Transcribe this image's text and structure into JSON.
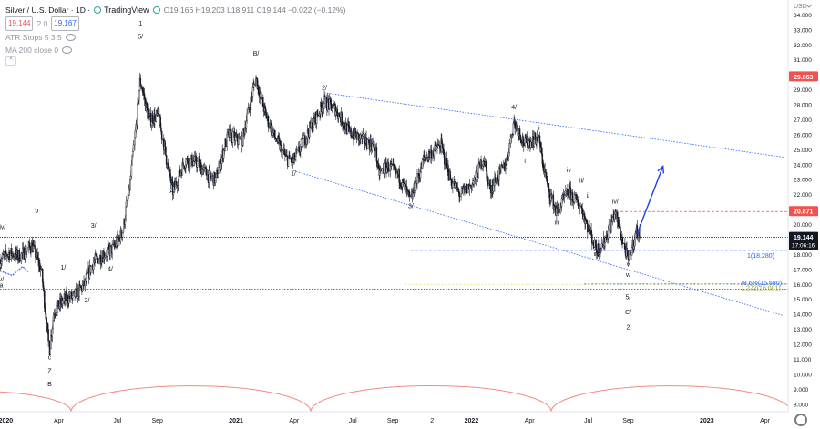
{
  "legend": {
    "symbol": "Silver / U.S. Dollar · 1D ·",
    "source": "TradingView",
    "o_label": "O",
    "o": "19.166",
    "h_label": "H",
    "h": "19.203",
    "l_label": "L",
    "l": "18.911",
    "c_label": "C",
    "c": "19.144",
    "change": "−0.022 (−0.12%)",
    "bid": "19.144",
    "spread": "2.0",
    "ask": "19.167",
    "indicator1": "ATR Stops 5 3.5",
    "indicator2": "MA 200 close 0",
    "collapse": "^"
  },
  "currency": "USD",
  "chart_data": {
    "type": "candlestick",
    "instrument": "Silver / U.S. Dollar",
    "timeframe": "1D",
    "y_axis": {
      "min": 7.5,
      "max": 35,
      "ticks": [
        "34.000",
        "33.000",
        "32.000",
        "31.000",
        "30.000",
        "29.000",
        "28.000",
        "27.000",
        "26.000",
        "25.000",
        "24.000",
        "23.000",
        "22.000",
        "21.000",
        "20.000",
        "19.000",
        "18.000",
        "17.000",
        "16.000",
        "15.000",
        "14.000",
        "13.000",
        "12.000",
        "11.000",
        "10.000",
        "9.000",
        "8.000"
      ]
    },
    "x_axis": {
      "labels": [
        "2020",
        "Apr",
        "Jul",
        "Sep",
        "2021",
        "Apr",
        "Jul",
        "Sep",
        "2",
        "2022",
        "Apr",
        "Jul",
        "Sep",
        "2023",
        "Apr"
      ]
    },
    "price_path": [
      [
        "2020-01-01",
        17.6
      ],
      [
        "2020-01-15",
        18.1
      ],
      [
        "2020-02-01",
        17.9
      ],
      [
        "2020-02-20",
        18.6
      ],
      [
        "2020-03-05",
        17.0
      ],
      [
        "2020-03-18",
        11.7
      ],
      [
        "2020-03-25",
        14.2
      ],
      [
        "2020-04-10",
        15.0
      ],
      [
        "2020-04-25",
        15.2
      ],
      [
        "2020-05-10",
        15.9
      ],
      [
        "2020-05-25",
        17.5
      ],
      [
        "2020-06-10",
        18.0
      ],
      [
        "2020-06-25",
        18.4
      ],
      [
        "2020-07-10",
        19.6
      ],
      [
        "2020-07-22",
        23.0
      ],
      [
        "2020-08-06",
        29.6
      ],
      [
        "2020-08-20",
        27.0
      ],
      [
        "2020-09-03",
        27.3
      ],
      [
        "2020-09-25",
        22.2
      ],
      [
        "2020-10-15",
        24.3
      ],
      [
        "2020-11-01",
        24.2
      ],
      [
        "2020-11-20",
        23.2
      ],
      [
        "2020-12-01",
        23.0
      ],
      [
        "2020-12-20",
        26.0
      ],
      [
        "2021-01-10",
        25.5
      ],
      [
        "2021-02-01",
        29.8
      ],
      [
        "2021-02-15",
        27.5
      ],
      [
        "2021-03-01",
        26.0
      ],
      [
        "2021-03-20",
        24.4
      ],
      [
        "2021-03-31",
        24.2
      ],
      [
        "2021-04-20",
        25.9
      ],
      [
        "2021-05-18",
        28.2
      ],
      [
        "2021-06-05",
        27.7
      ],
      [
        "2021-06-25",
        26.2
      ],
      [
        "2021-07-15",
        25.7
      ],
      [
        "2021-08-05",
        25.2
      ],
      [
        "2021-08-10",
        23.4
      ],
      [
        "2021-08-25",
        23.9
      ],
      [
        "2021-09-10",
        23.3
      ],
      [
        "2021-09-29",
        21.6
      ],
      [
        "2021-10-20",
        24.4
      ],
      [
        "2021-11-15",
        25.3
      ],
      [
        "2021-11-30",
        23.0
      ],
      [
        "2021-12-15",
        22.0
      ],
      [
        "2022-01-05",
        22.8
      ],
      [
        "2022-01-20",
        24.5
      ],
      [
        "2022-01-30",
        22.3
      ],
      [
        "2022-02-25",
        24.2
      ],
      [
        "2022-03-08",
        26.9
      ],
      [
        "2022-03-25",
        25.4
      ],
      [
        "2022-04-15",
        25.8
      ],
      [
        "2022-04-29",
        22.6
      ],
      [
        "2022-05-13",
        20.8
      ],
      [
        "2022-06-01",
        22.2
      ],
      [
        "2022-06-20",
        21.2
      ],
      [
        "2022-07-14",
        18.3
      ],
      [
        "2022-07-25",
        18.7
      ],
      [
        "2022-08-12",
        20.8
      ],
      [
        "2022-09-01",
        17.6
      ],
      [
        "2022-09-08",
        18.6
      ],
      [
        "2022-09-15",
        19.6
      ],
      [
        "2022-09-20",
        19.144
      ]
    ],
    "levels": [
      {
        "name": "2020 high resistance",
        "value": 29.863,
        "label": "29.863",
        "color": "#ef5350"
      },
      {
        "name": "resistance",
        "value": 20.871,
        "label": "20.871",
        "color": "#ef5350"
      },
      {
        "name": "last price",
        "value": 19.144,
        "label": "19.144",
        "sublabel": "17:06:16",
        "color": "#131722"
      },
      {
        "name": "fib 1",
        "value": 18.28,
        "label": "1(18.280)",
        "color": "#2962ff"
      },
      {
        "name": "fib 78.6",
        "value": 15.68,
        "label": "78.6%(15.680)",
        "color": "#2962ff"
      },
      {
        "name": "fib 1.272",
        "value": 16.0,
        "label": "1.272(16.001)",
        "color": "#b2c900"
      }
    ],
    "channel": [
      {
        "from": [
          "2021-05-18",
          28.8
        ],
        "to": [
          "2023-05-01",
          24.5
        ]
      },
      {
        "from": [
          "2021-03-31",
          23.6
        ],
        "to": [
          "2023-05-01",
          13.9
        ]
      }
    ],
    "forecast_arrow": {
      "from": [
        "2022-09-15",
        19.4
      ],
      "to": [
        "2022-10-25",
        23.9
      ]
    },
    "wave_labels": [
      [
        "2020-01-05",
        19.7,
        "iv/"
      ],
      [
        "2020-01-03",
        16.2,
        "v/"
      ],
      [
        "2020-01-03",
        15.8,
        "a"
      ],
      [
        "2020-02-27",
        20.8,
        "b"
      ],
      [
        "2020-03-18",
        11.0,
        "c"
      ],
      [
        "2020-03-18",
        10.1,
        "Z"
      ],
      [
        "2020-03-18",
        9.2,
        "B"
      ],
      [
        "2020-04-08",
        17.0,
        "1/"
      ],
      [
        "2020-05-15",
        14.8,
        "2/"
      ],
      [
        "2020-05-25",
        19.8,
        "3/"
      ],
      [
        "2020-06-20",
        16.9,
        "4/"
      ],
      [
        "2020-08-06",
        33.3,
        "1"
      ],
      [
        "2020-08-06",
        32.4,
        "5/"
      ],
      [
        "2020-09-25",
        22.1,
        "A/"
      ],
      [
        "2021-02-01",
        31.3,
        "B/"
      ],
      [
        "2021-03-31",
        23.3,
        "1/"
      ],
      [
        "2021-05-18",
        29.0,
        "2/"
      ],
      [
        "2021-09-29",
        21.1,
        "3/"
      ],
      [
        "2022-03-08",
        27.7,
        "4/"
      ],
      [
        "2022-04-15",
        26.3,
        "ii"
      ],
      [
        "2022-03-25",
        24.1,
        "i"
      ],
      [
        "2022-06-01",
        23.5,
        "iv"
      ],
      [
        "2022-06-20",
        22.8,
        "iii/"
      ],
      [
        "2022-05-13",
        20.0,
        "iii"
      ],
      [
        "2022-07-01",
        21.8,
        "i/"
      ],
      [
        "2022-08-12",
        21.4,
        "iv/"
      ],
      [
        "2022-07-14",
        17.9,
        "iii/"
      ],
      [
        "2022-09-01",
        16.5,
        "v/"
      ],
      [
        "2022-09-01",
        17.2,
        "v"
      ],
      [
        "2022-09-01",
        15.0,
        "5/"
      ],
      [
        "2022-09-01",
        14.0,
        "C/"
      ],
      [
        "2022-09-01",
        13.0,
        "2"
      ]
    ]
  }
}
